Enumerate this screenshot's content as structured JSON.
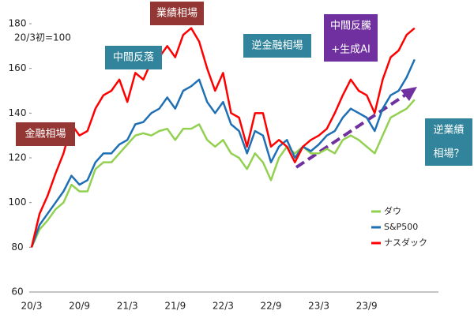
{
  "chart_data": {
    "type": "line",
    "subtitle": "20/3初=100",
    "categories": [
      "20/3",
      null,
      null,
      null,
      null,
      null,
      "20/9",
      null,
      null,
      null,
      null,
      null,
      "21/3",
      null,
      null,
      null,
      null,
      null,
      "21/9",
      null,
      null,
      null,
      null,
      null,
      "22/3",
      null,
      null,
      null,
      null,
      null,
      "22/9",
      null,
      null,
      null,
      null,
      null,
      "23/3",
      null,
      null,
      null,
      null,
      null,
      "23/9",
      null,
      null,
      null,
      null,
      null,
      null
    ],
    "series": [
      {
        "name": "ダウ",
        "color": "#92d050",
        "values": [
          80,
          88,
          92,
          97,
          100,
          108,
          105,
          105,
          115,
          118,
          118,
          122,
          126,
          130,
          131,
          130,
          132,
          133,
          128,
          133,
          133,
          135,
          128,
          125,
          128,
          122,
          120,
          115,
          122,
          118,
          110,
          120,
          125,
          122,
          125,
          122,
          122,
          124,
          122,
          128,
          130,
          128,
          125,
          122,
          130,
          138,
          140,
          142,
          146
        ]
      },
      {
        "name": "S&P500",
        "color": "#1f6fb5",
        "values": [
          80,
          90,
          95,
          100,
          105,
          112,
          108,
          110,
          118,
          122,
          122,
          126,
          128,
          135,
          136,
          140,
          142,
          147,
          142,
          150,
          152,
          155,
          145,
          140,
          145,
          135,
          132,
          122,
          132,
          130,
          118,
          125,
          128,
          120,
          125,
          123,
          126,
          130,
          132,
          138,
          142,
          140,
          138,
          132,
          142,
          148,
          150,
          156,
          164
        ]
      },
      {
        "name": "ナスダック",
        "color": "#ff0000",
        "values": [
          80,
          95,
          103,
          113,
          122,
          135,
          130,
          132,
          142,
          148,
          150,
          155,
          145,
          158,
          155,
          163,
          165,
          170,
          165,
          175,
          178,
          172,
          160,
          150,
          158,
          140,
          138,
          125,
          140,
          140,
          125,
          128,
          125,
          118,
          125,
          128,
          130,
          133,
          140,
          148,
          155,
          150,
          148,
          140,
          155,
          165,
          168,
          175,
          178
        ]
      }
    ],
    "ylim": [
      60,
      180
    ],
    "yticks": [
      60,
      80,
      100,
      120,
      140,
      160,
      180
    ],
    "annotations": [
      {
        "lines": [
          "金融相場"
        ],
        "color": "#943634"
      },
      {
        "lines": [
          "中間反落"
        ],
        "color": "#31849b"
      },
      {
        "lines": [
          "業績相場"
        ],
        "color": "#943634"
      },
      {
        "lines": [
          "逆金融相場"
        ],
        "color": "#31849b"
      },
      {
        "lines": [
          "中間反騰",
          "+生成AI"
        ],
        "color": "#7030a0"
      },
      {
        "lines": [
          "逆業績",
          "相場？"
        ],
        "color": "#31849b"
      }
    ]
  }
}
